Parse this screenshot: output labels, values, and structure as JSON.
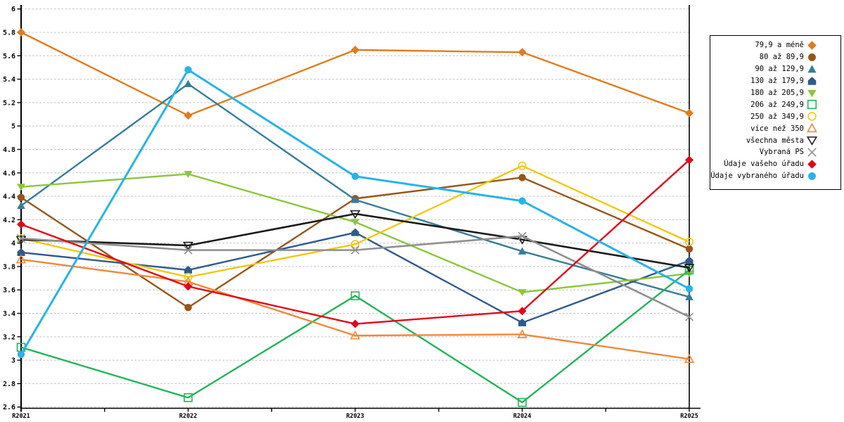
{
  "chart_data": {
    "type": "line",
    "title": "",
    "categories": [
      "R2021",
      "R2022",
      "R2023",
      "R2024",
      "R2025"
    ],
    "y_axis": {
      "min": 2.6,
      "max": 6.0,
      "step": 0.2,
      "tick_labels": [
        "6",
        "5.8",
        "5.6",
        "5.4",
        "5.2",
        "5",
        "4.8",
        "4.6",
        "4.4",
        "4.2",
        "4",
        "3.8",
        "3.6",
        "3.4",
        "3.2",
        "3",
        "2.8",
        "2.6"
      ]
    },
    "grid": "horizontal-dotted",
    "legend_position": "right",
    "series": [
      {
        "name": "79,9 a méně",
        "color": "#E07C1F",
        "marker": "diamond",
        "fill": "filled",
        "values": [
          5.8,
          5.09,
          5.65,
          5.63,
          5.11
        ]
      },
      {
        "name": "80 až 89,9",
        "color": "#97551B",
        "marker": "circle",
        "fill": "filled",
        "values": [
          4.39,
          3.45,
          4.38,
          4.56,
          3.95
        ]
      },
      {
        "name": "90 až 129,9",
        "color": "#367D99",
        "marker": "triangle-up",
        "fill": "filled",
        "values": [
          4.32,
          5.36,
          4.37,
          3.93,
          3.54
        ]
      },
      {
        "name": "130 až 179,9",
        "color": "#2F5A8C",
        "marker": "pentagon",
        "fill": "filled",
        "values": [
          3.92,
          3.77,
          4.09,
          3.32,
          3.85
        ]
      },
      {
        "name": "180 až 205,9",
        "color": "#8CC63E",
        "marker": "triangle-down",
        "fill": "filled",
        "values": [
          4.48,
          4.59,
          4.18,
          3.58,
          3.74
        ]
      },
      {
        "name": "206 až 249,9",
        "color": "#24B45A",
        "marker": "square",
        "fill": "open",
        "values": [
          3.11,
          2.68,
          3.55,
          2.64,
          3.77
        ]
      },
      {
        "name": "250 až 349,9",
        "color": "#EFC912",
        "marker": "circle",
        "fill": "open",
        "values": [
          4.04,
          3.71,
          3.99,
          4.66,
          4.01
        ]
      },
      {
        "name": "více než 350",
        "color": "#F0883B",
        "marker": "triangle-up",
        "fill": "open",
        "values": [
          3.86,
          3.67,
          3.21,
          3.22,
          3.01
        ]
      },
      {
        "name": "všechna města",
        "color": "#1A1A1A",
        "marker": "triangle-down",
        "fill": "open",
        "values": [
          4.03,
          3.98,
          4.25,
          4.03,
          3.79
        ]
      },
      {
        "name": "Vybraná PS",
        "color": "#8F8F8F",
        "marker": "x-cross",
        "fill": "line",
        "values": [
          4.04,
          3.94,
          3.94,
          4.06,
          3.37
        ]
      },
      {
        "name": "Údaje vašeho úřadu",
        "color": "#E30617",
        "marker": "diamond",
        "fill": "filled",
        "values": [
          4.16,
          3.63,
          3.31,
          3.42,
          4.71
        ]
      },
      {
        "name": "Údaje vybraného úřadu",
        "color": "#29B3E8",
        "marker": "circle",
        "fill": "filled",
        "values": [
          3.05,
          5.48,
          4.57,
          4.36,
          3.61
        ]
      }
    ]
  }
}
